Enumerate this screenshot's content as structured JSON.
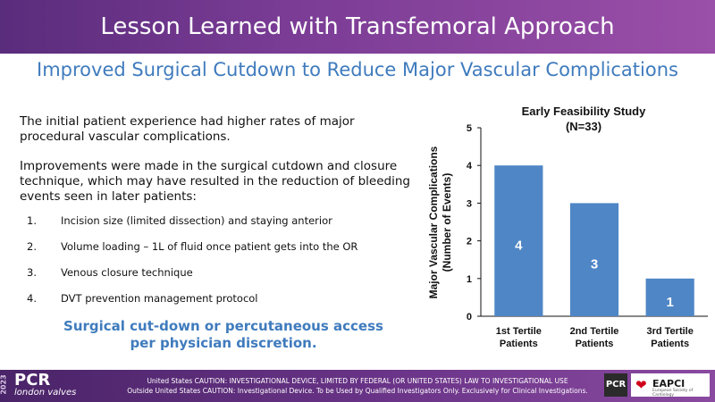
{
  "header": {
    "title": "Lesson Learned with Transfemoral Approach"
  },
  "subtitle": "Improved Surgical Cutdown to Reduce Major Vascular Complications",
  "body": {
    "paragraph1": "The initial patient experience had higher rates of major procedural vascular complications.",
    "paragraph2": "Improvements were made in the surgical cutdown and closure technique, which may have resulted in the reduction of bleeding events seen in later patients:",
    "list": [
      {
        "num": "1.",
        "text": "Incision size (limited dissection) and staying anterior"
      },
      {
        "num": "2.",
        "text": "Volume loading – 1L of fluid once patient gets into the OR"
      },
      {
        "num": "3.",
        "text": "Venous closure technique"
      },
      {
        "num": "4.",
        "text": "DVT prevention management protocol"
      }
    ],
    "callout": "Surgical cut-down or percutaneous access per physician discretion."
  },
  "chart_data": {
    "type": "bar",
    "title": "Early Feasibility Study",
    "subtitle": "(N=33)",
    "categories": [
      "1st Tertile Patients",
      "2nd Tertile Patients",
      "3rd Tertile Patients"
    ],
    "values": [
      4,
      3,
      1
    ],
    "data_labels": [
      "4",
      "3",
      "1"
    ],
    "ylabel": "Major Vascular Complications (Number of Events)",
    "xlabel": "",
    "ylim": [
      0,
      5
    ],
    "yticks": [
      0,
      1,
      2,
      3,
      4,
      5
    ],
    "grid": false,
    "bar_color": "#4f86c6"
  },
  "footer": {
    "year": "2023",
    "logo_main": "PCR",
    "logo_sub": "london valves",
    "caution_line1": "United States CAUTION: INVESTIGATIONAL DEVICE, LIMITED BY FEDERAL (OR UNITED STATES) LAW TO INVESTIGATIONAL USE",
    "caution_line2": "Outside United States CAUTION: Investigational Device. To be Used by Qualified Investigators Only. Exclusively for Clinical Investigations.",
    "badge_pcr": "PCR",
    "badge_eapci": "EAPCI",
    "badge_eapci_sub": "European Society of Cardiology"
  }
}
